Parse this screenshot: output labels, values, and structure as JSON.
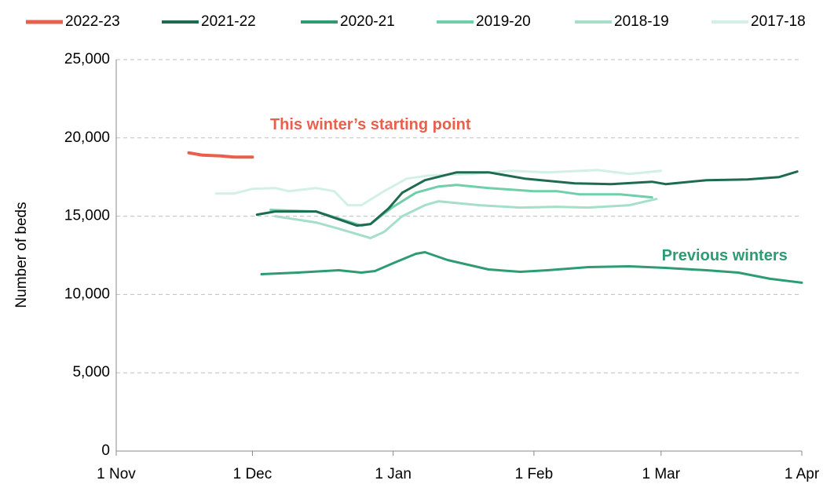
{
  "chart_data": {
    "type": "line",
    "y_label": "Number of beds",
    "annotations": [
      {
        "text": "This winter’s starting point",
        "color": "#e8604c",
        "x": 56,
        "y": 20800
      },
      {
        "text": "Previous winters",
        "color": "#2e9b72",
        "x": 134,
        "y": 12450
      }
    ],
    "xlim": [
      0,
      151
    ],
    "xticks": [
      {
        "value": 0,
        "label": "1 Nov"
      },
      {
        "value": 30,
        "label": "1 Dec"
      },
      {
        "value": 61,
        "label": "1 Jan"
      },
      {
        "value": 92,
        "label": "1 Feb"
      },
      {
        "value": 120,
        "label": "1 Mar"
      },
      {
        "value": 151,
        "label": "1 Apr"
      }
    ],
    "ylim": [
      0,
      25000
    ],
    "yticks": [
      0,
      {
        "value": 5000,
        "label": "5,000"
      },
      {
        "value": 10000,
        "label": "10,000"
      },
      {
        "value": 15000,
        "label": "15,000"
      },
      {
        "value": 20000,
        "label": "20,000"
      },
      {
        "value": 25000,
        "label": "25,000"
      }
    ],
    "grid": true,
    "series": [
      {
        "name": "2022-23",
        "color": "#e8604c",
        "width": 4,
        "x": [
          16,
          19,
          23,
          26,
          30
        ],
        "values": [
          19050,
          18900,
          18850,
          18780,
          18780
        ]
      },
      {
        "name": "2021-22",
        "color": "#1e6b50",
        "width": 3,
        "x": [
          31,
          35,
          44,
          53,
          56,
          60,
          63,
          68,
          75,
          82,
          90,
          101,
          109,
          118,
          121,
          130,
          139,
          146,
          150
        ],
        "values": [
          15100,
          15300,
          15300,
          14400,
          14500,
          15500,
          16500,
          17300,
          17800,
          17800,
          17400,
          17100,
          17050,
          17200,
          17050,
          17300,
          17350,
          17500,
          17850
        ]
      },
      {
        "name": "2020-21",
        "color": "#2e9b72",
        "width": 3,
        "x": [
          32,
          40,
          49,
          54,
          57,
          61,
          66,
          68,
          73,
          82,
          89,
          95,
          104,
          113,
          121,
          130,
          137,
          144,
          151
        ],
        "values": [
          11300,
          11400,
          11550,
          11400,
          11500,
          12000,
          12600,
          12700,
          12200,
          11600,
          11450,
          11550,
          11750,
          11800,
          11700,
          11550,
          11400,
          11000,
          10750
        ]
      },
      {
        "name": "2019-20",
        "color": "#6fcfa8",
        "width": 3,
        "x": [
          34,
          44,
          54,
          56,
          61,
          66,
          71,
          75,
          82,
          92,
          97,
          102,
          111,
          118
        ],
        "values": [
          15400,
          15300,
          14400,
          14500,
          15600,
          16500,
          16900,
          17000,
          16800,
          16600,
          16600,
          16400,
          16400,
          16200
        ]
      },
      {
        "name": "2018-19",
        "color": "#a5dfc8",
        "width": 3,
        "x": [
          35,
          44,
          49,
          56,
          59,
          63,
          68,
          71,
          80,
          89,
          97,
          104,
          113,
          119
        ],
        "values": [
          15000,
          14600,
          14200,
          13600,
          14000,
          15000,
          15700,
          15950,
          15700,
          15550,
          15600,
          15550,
          15700,
          16100
        ]
      },
      {
        "name": "2017-18",
        "color": "#d3f0e4",
        "width": 3,
        "x": [
          22,
          26,
          30,
          35,
          38,
          44,
          48,
          51,
          54,
          59,
          64,
          69,
          78,
          87,
          95,
          106,
          113,
          120
        ],
        "values": [
          16450,
          16450,
          16750,
          16800,
          16600,
          16800,
          16600,
          15700,
          15700,
          16600,
          17400,
          17600,
          17700,
          17900,
          17800,
          17950,
          17700,
          17900
        ]
      }
    ]
  }
}
